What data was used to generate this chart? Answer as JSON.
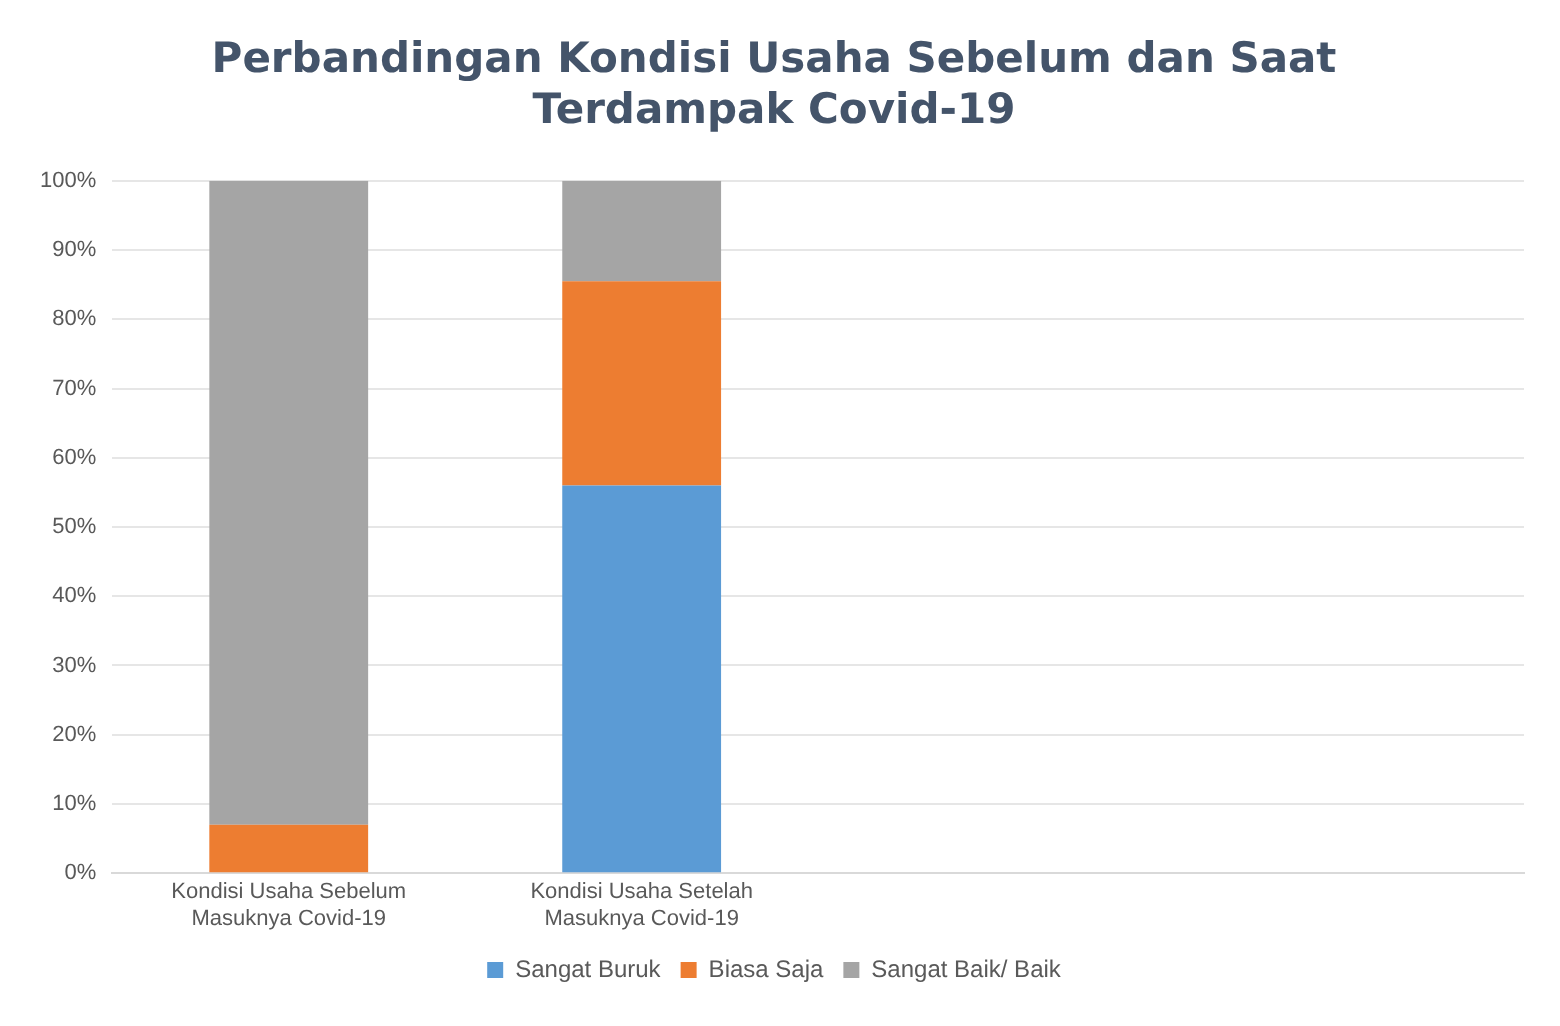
{
  "chart_data": {
    "type": "bar",
    "title": "Perbandingan Kondisi Usaha Sebelum dan Saat Terdampak Covid-19",
    "categories": [
      "Kondisi Usaha Sebelum Masuknya Covid-19",
      "Kondisi Usaha Setelah Masuknya Covid-19",
      null,
      null
    ],
    "stacked": true,
    "series": [
      {
        "name": "Sangat Buruk",
        "color": "#5b9bd5",
        "values": [
          0,
          56,
          null,
          null
        ]
      },
      {
        "name": "Biasa Saja",
        "color": "#ed7d31",
        "values": [
          7,
          29.5,
          null,
          null
        ]
      },
      {
        "name": "Sangat Baik/ Baik",
        "color": "#a5a5a5",
        "values": [
          93,
          14.5,
          null,
          null
        ]
      }
    ],
    "ylim": [
      0,
      100
    ],
    "yticks": [
      {
        "value": 0,
        "label": "0%"
      },
      {
        "value": 10,
        "label": "10%"
      },
      {
        "value": 20,
        "label": "20%"
      },
      {
        "value": 30,
        "label": "30%"
      },
      {
        "value": 40,
        "label": "40%"
      },
      {
        "value": 50,
        "label": "50%"
      },
      {
        "value": 60,
        "label": "60%"
      },
      {
        "value": 70,
        "label": "70%"
      },
      {
        "value": 80,
        "label": "80%"
      },
      {
        "value": 90,
        "label": "90%"
      },
      {
        "value": 100,
        "label": "100%"
      }
    ],
    "grid": "y",
    "legend": "bottom"
  }
}
